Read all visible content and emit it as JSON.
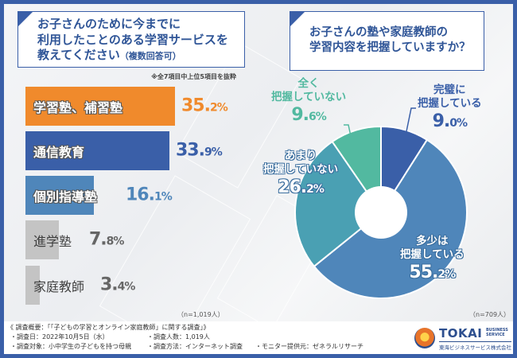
{
  "left_question": {
    "title_line1": "お子さんのために今までに",
    "title_line2": "利用したことのある学習サービスを",
    "title_line3": "教えてください",
    "title_suffix": "（複数回答可）",
    "note": "※全7項目中上位5項目を抜粋",
    "n": "（n=1,019人）"
  },
  "right_question": {
    "title_line1": "お子さんの塾や家庭教師の",
    "title_line2": "学習内容を把握していますか？",
    "n": "（n=709人）"
  },
  "colors": {
    "frame": "#3a5fa8",
    "orange": "#f08a2c",
    "blue_dark": "#3a5fa8",
    "blue_mid": "#4f86ba",
    "gray": "#c4c4c4",
    "pie_complete": "#3a5fa8",
    "pie_some": "#4f86ba",
    "pie_little": "#4aa0b3",
    "pie_none": "#52b9a0"
  },
  "chart_data": [
    {
      "type": "bar",
      "orientation": "horizontal",
      "title": "お子さんのために今までに利用したことのある学習サービスを教えてください（複数回答可）",
      "categories": [
        "学習塾、補習塾",
        "通信教育",
        "個別指導塾",
        "進学塾",
        "家庭教師"
      ],
      "values": [
        35.2,
        33.9,
        16.1,
        7.8,
        3.4
      ],
      "value_labels": [
        {
          "int": "35.",
          "dec": "2%"
        },
        {
          "int": "33.",
          "dec": "9%"
        },
        {
          "int": "16.",
          "dec": "1%"
        },
        {
          "int": "7.",
          "dec": "8%"
        },
        {
          "int": "3.",
          "dec": "4%"
        }
      ],
      "bar_colors": [
        "#f08a2c",
        "#3a5fa8",
        "#4f86ba",
        "#c4c4c4",
        "#c4c4c4"
      ],
      "value_colors": [
        "#f08a2c",
        "#3a5fa8",
        "#4f86ba",
        "#666666",
        "#666666"
      ],
      "label_styles": [
        "outlined",
        "outlined",
        "outlined",
        "plain",
        "plain"
      ],
      "unit": "%",
      "xlim": [
        0,
        40
      ],
      "note": "※全7項目中上位5項目を抜粋",
      "n": "n=1,019人"
    },
    {
      "type": "pie",
      "donut": true,
      "title": "お子さんの塾や家庭教師の学習内容を把握していますか？",
      "slices": [
        {
          "label_line1": "完璧に",
          "label_line2": "把握している",
          "value": 9.0,
          "int": "9.",
          "dec": "0%",
          "color": "#3a5fa8"
        },
        {
          "label_line1": "多少は",
          "label_line2": "把握している",
          "value": 55.2,
          "int": "55.",
          "dec": "2%",
          "color": "#4f86ba"
        },
        {
          "label_line1": "あまり",
          "label_line2": "把握していない",
          "value": 26.2,
          "int": "26.",
          "dec": "2%",
          "color": "#4aa0b3"
        },
        {
          "label_line1": "全く",
          "label_line2": "把握していない",
          "value": 9.6,
          "int": "9.",
          "dec": "6%",
          "color": "#52b9a0"
        }
      ],
      "start": "top",
      "direction": "clockwise",
      "n": "n=709人"
    }
  ],
  "footer": {
    "heading": "《 調査概要：「「子どもの学習とオンライン家庭教師」に関する調査」》",
    "items": [
      "・調査日：2022年10月5日（水）",
      "・調査人数：1,019人",
      "・調査対象：小中学生の子どもを持つ母親",
      "・調査方法：インターネット調査",
      "・モニター提供元：ゼネラルリサーチ"
    ]
  },
  "logo": {
    "name": "TOKAI",
    "sub1": "BUSINESS",
    "sub2": "SERVICE",
    "jp": "東海ビジネスサービス株式会社"
  }
}
